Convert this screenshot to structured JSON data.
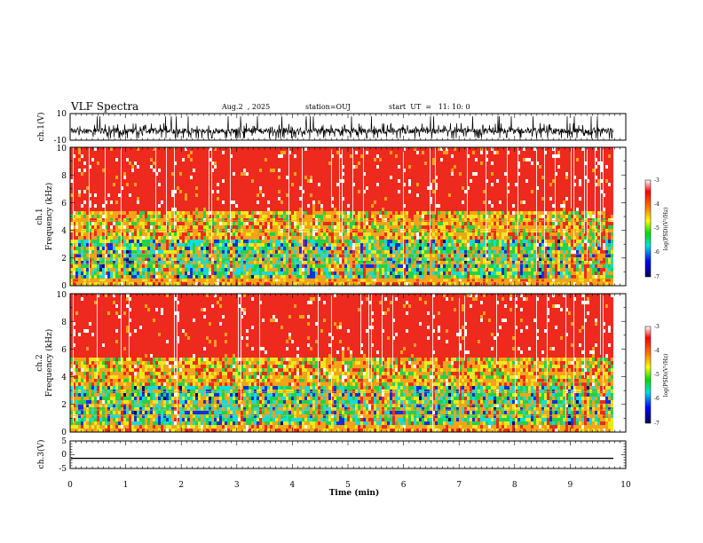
{
  "header": {
    "title": "VLF Spectra",
    "date": "Aug.2  , 2025",
    "station": "station=OUJ",
    "start": "start  UT  =   11: 10: 0"
  },
  "colors": {
    "red": "#ee2a1e",
    "orange": "#f6a21a",
    "yellow": "#eaea1c",
    "green": "#22d24a",
    "cyan": "#14dcdc",
    "blue": "#1030e0",
    "navy": "#000070",
    "white": "#ffffff"
  },
  "chart_data": [
    {
      "type": "line",
      "name": "ch1-waveform",
      "ylabel": "ch.1(V)",
      "ylim": [
        -10,
        10
      ],
      "yticks": [
        "10",
        "-10"
      ],
      "xlim": [
        0,
        9.83
      ],
      "description_values": {
        "baseline": -3,
        "min": -9,
        "max": 8
      }
    },
    {
      "type": "heatmap",
      "name": "ch1-spectrogram",
      "ylabel_line1": "ch.1",
      "ylabel_line2": "Frequency (kHz)",
      "ylim": [
        0,
        10
      ],
      "yticks": [
        "0",
        "2",
        "4",
        "6",
        "8",
        "10"
      ],
      "xlim": [
        0,
        9.83
      ],
      "colorbar": {
        "label": "log(PSD)(V²/Hz)",
        "range": [
          -7,
          -3
        ],
        "ticks": [
          "-3",
          "-4",
          "-5",
          "-6",
          "-7"
        ]
      },
      "horizontal_lines_khz": [
        0.3,
        0.5,
        1.6,
        2.0,
        2.3,
        4.0,
        4.7
      ]
    },
    {
      "type": "heatmap",
      "name": "ch2-spectrogram",
      "ylabel_line1": "ch.2",
      "ylabel_line2": "Frequency (kHz)",
      "ylim": [
        0,
        10
      ],
      "yticks": [
        "0",
        "2",
        "4",
        "6",
        "8",
        "10"
      ],
      "xlim": [
        0,
        9.83
      ],
      "colorbar": {
        "label": "log(PSD)(V²/Hz)",
        "range": [
          -7,
          -3
        ],
        "ticks": [
          "-3",
          "-4",
          "-5",
          "-6",
          "-7"
        ]
      },
      "horizontal_lines_khz": [
        1.2,
        1.6,
        2.0,
        2.9,
        3.6
      ]
    },
    {
      "type": "line",
      "name": "ch3-waveform",
      "ylabel": "ch.3(V)",
      "ylim": [
        -5,
        5
      ],
      "yticks": [
        "5",
        "0",
        "-5"
      ],
      "xlim": [
        0,
        9.83
      ],
      "values": [
        -1.3,
        -1.3
      ],
      "x": [
        0,
        9.83
      ]
    },
    {
      "type": "axis",
      "name": "time-axis",
      "xlabel": "Time  (min)",
      "xlim": [
        0,
        10
      ],
      "xticks": [
        "0",
        "1",
        "2",
        "3",
        "4",
        "5",
        "6",
        "7",
        "8",
        "9",
        "10"
      ]
    }
  ]
}
